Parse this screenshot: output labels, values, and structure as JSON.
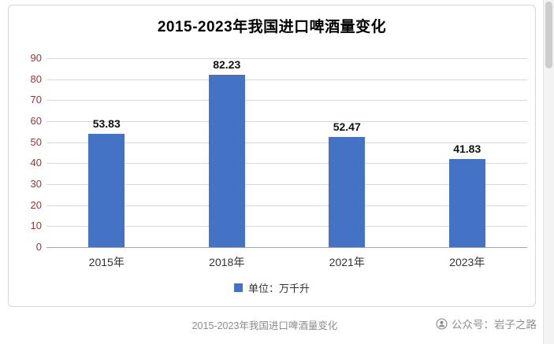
{
  "page": {
    "caption": "2015-2023年我国进口啤酒量变化",
    "watermark_text": "公众号：岩子之路"
  },
  "chart": {
    "title": "2015-2023年我国进口啤酒量变化",
    "legend_label": "单位：万千升"
  },
  "chart_data": {
    "type": "bar",
    "title": "2015-2023年我国进口啤酒量变化",
    "categories": [
      "2015年",
      "2018年",
      "2021年",
      "2023年"
    ],
    "values": [
      53.83,
      82.23,
      52.47,
      41.83
    ],
    "data_labels": [
      "53.83",
      "82.23",
      "52.47",
      "41.83"
    ],
    "xlabel": "",
    "ylabel": "",
    "ylim": [
      0,
      90
    ],
    "ytick_step": 10,
    "yticks": [
      0,
      10,
      20,
      30,
      40,
      50,
      60,
      70,
      80,
      90
    ],
    "grid": true,
    "legend": "单位：万千升",
    "legend_position": "bottom"
  },
  "colors": {
    "bar": "#4472C4",
    "ytick_label": "#963634",
    "xtick_label": "#333333",
    "gridline": "#d9d9d9",
    "axisline": "#a6a6a6",
    "caption": "#8c8c8c"
  }
}
